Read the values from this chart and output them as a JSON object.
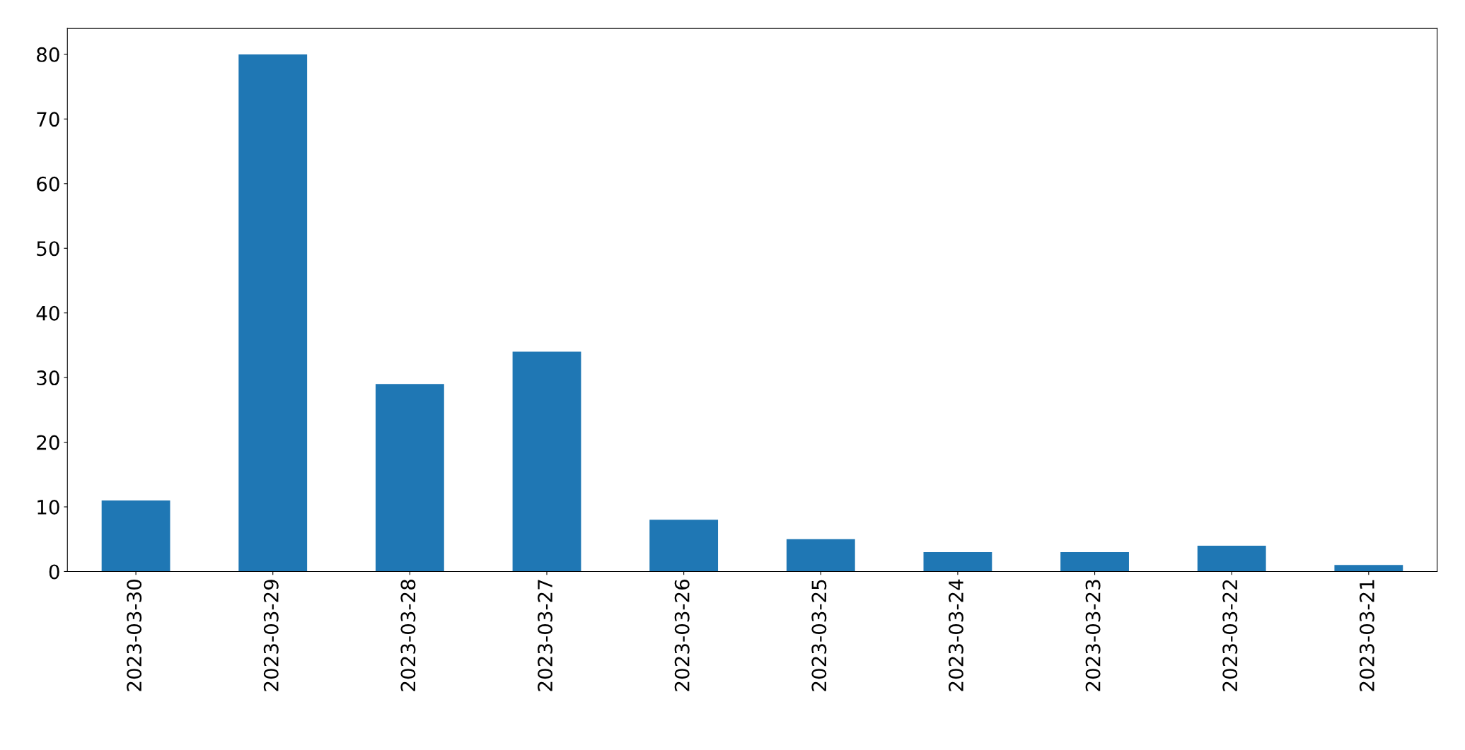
{
  "chart_data": {
    "type": "bar",
    "categories": [
      "2023-03-30",
      "2023-03-29",
      "2023-03-28",
      "2023-03-27",
      "2023-03-26",
      "2023-03-25",
      "2023-03-24",
      "2023-03-23",
      "2023-03-22",
      "2023-03-21"
    ],
    "values": [
      11,
      80,
      29,
      34,
      8,
      5,
      3,
      3,
      4,
      1
    ],
    "color": "#1f77b4",
    "ylim": [
      0,
      84
    ],
    "yticks": [
      0,
      10,
      20,
      30,
      40,
      50,
      60,
      70,
      80
    ]
  }
}
